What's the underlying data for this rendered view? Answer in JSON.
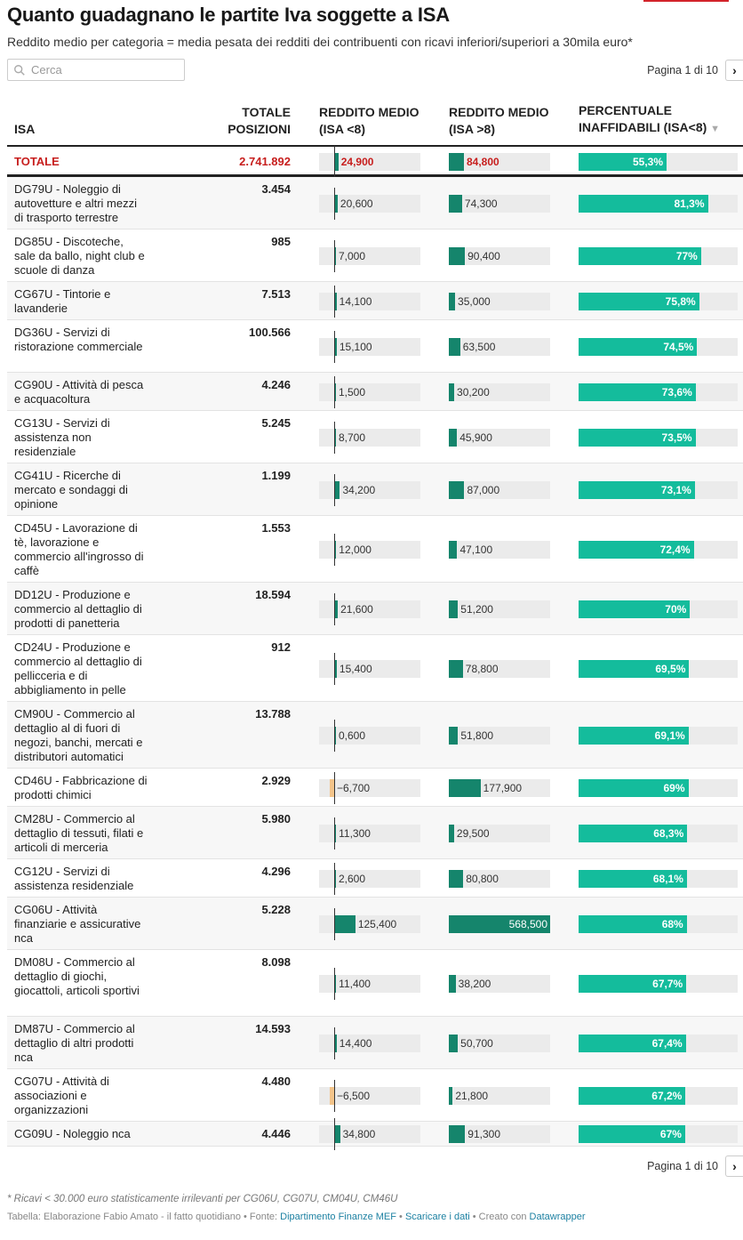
{
  "title": "Quanto guadagnano le partite Iva soggette a ISA",
  "subtitle": "Reddito medio per categoria = media pesata dei redditi dei contribuenti con ricavi inferiori/superiori a 30mila euro*",
  "search": {
    "placeholder": "Cerca"
  },
  "pagination": {
    "label": "Pagina 1 di 10",
    "next_symbol": "›"
  },
  "colors": {
    "accent": "#d2232a",
    "total_red": "#c71e1d",
    "bar_dark": "#15856c",
    "bar_negative": "#f3c48a",
    "bar_pct": "#14bc9c",
    "cell_bg": "#ebebeb"
  },
  "chart_data": {
    "type": "table",
    "columns": [
      "ISA",
      "TOTALE POSIZIONI",
      "REDDITO MEDIO (ISA <8)",
      "REDDITO MEDIO (ISA >8)",
      "PERCENTUALE INAFFIDABILI (ISA<8)"
    ],
    "column_headers": {
      "isa": "ISA",
      "pos_line1": "TOTALE",
      "pos_line2": "POSIZIONI",
      "r1_line1": "REDDITO MEDIO",
      "r1_line2": "(ISA <8)",
      "r2_line1": "REDDITO MEDIO",
      "r2_line2": "(ISA >8)",
      "pct_line1": "PERCENTUALE",
      "pct_line2": "INAFFIDABILI (ISA<8)",
      "sort_indicator": "▼"
    },
    "total": {
      "label": "TOTALE",
      "positions": "2.741.892",
      "r1": 24900,
      "r1_label": "24,900",
      "r2": 84800,
      "r2_label": "84,800",
      "pct": 55.3,
      "pct_label": "55,3%"
    },
    "rows": [
      {
        "label": "DG79U - Noleggio di autovetture e altri mezzi di trasporto terrestre",
        "positions": "3.454",
        "r1": 20600,
        "r1_label": "20,600",
        "r2": 74300,
        "r2_label": "74,300",
        "pct": 81.3,
        "pct_label": "81,3%"
      },
      {
        "label": "DG85U - Discoteche, sale da ballo, night club e scuole di danza",
        "positions": "985",
        "r1": 7000,
        "r1_label": "7,000",
        "r2": 90400,
        "r2_label": "90,400",
        "pct": 77,
        "pct_label": "77%"
      },
      {
        "label": "CG67U - Tintorie e lavanderie",
        "positions": "7.513",
        "r1": 14100,
        "r1_label": "14,100",
        "r2": 35000,
        "r2_label": "35,000",
        "pct": 75.8,
        "pct_label": "75,8%"
      },
      {
        "label": "DG36U - Servizi di ristorazione commerciale",
        "positions": "100.566",
        "r1": 15100,
        "r1_label": "15,100",
        "r2": 63500,
        "r2_label": "63,500",
        "pct": 74.5,
        "pct_label": "74,5%"
      },
      {
        "label": "CG90U - Attività di pesca e acquacoltura",
        "positions": "4.246",
        "r1": 1500,
        "r1_label": "1,500",
        "r2": 30200,
        "r2_label": "30,200",
        "pct": 73.6,
        "pct_label": "73,6%"
      },
      {
        "label": "CG13U - Servizi di assistenza non residenziale",
        "positions": "5.245",
        "r1": 8700,
        "r1_label": "8,700",
        "r2": 45900,
        "r2_label": "45,900",
        "pct": 73.5,
        "pct_label": "73,5%"
      },
      {
        "label": "CG41U - Ricerche di mercato e sondaggi di opinione",
        "positions": "1.199",
        "r1": 34200,
        "r1_label": "34,200",
        "r2": 87000,
        "r2_label": "87,000",
        "pct": 73.1,
        "pct_label": "73,1%"
      },
      {
        "label": "CD45U - Lavorazione di tè, lavorazione e commercio all'ingrosso di caffè",
        "positions": "1.553",
        "r1": 12000,
        "r1_label": "12,000",
        "r2": 47100,
        "r2_label": "47,100",
        "pct": 72.4,
        "pct_label": "72,4%"
      },
      {
        "label": "DD12U - Produzione e commercio al dettaglio di prodotti di panetteria",
        "positions": "18.594",
        "r1": 21600,
        "r1_label": "21,600",
        "r2": 51200,
        "r2_label": "51,200",
        "pct": 70,
        "pct_label": "70%"
      },
      {
        "label": "CD24U - Produzione e commercio al dettaglio di pellicceria e di abbigliamento in pelle",
        "positions": "912",
        "r1": 15400,
        "r1_label": "15,400",
        "r2": 78800,
        "r2_label": "78,800",
        "pct": 69.5,
        "pct_label": "69,5%"
      },
      {
        "label": "CM90U - Commercio al dettaglio al di fuori di negozi, banchi, mercati e distributori automatici",
        "positions": "13.788",
        "r1": 600,
        "r1_label": "0,600",
        "r2": 51800,
        "r2_label": "51,800",
        "pct": 69.1,
        "pct_label": "69,1%"
      },
      {
        "label": "CD46U - Fabbricazione di prodotti chimici",
        "positions": "2.929",
        "r1": -6700,
        "r1_label": "−6,700",
        "r2": 177900,
        "r2_label": "177,900",
        "pct": 69,
        "pct_label": "69%"
      },
      {
        "label": "CM28U - Commercio al dettaglio di tessuti, filati e articoli di merceria",
        "positions": "5.980",
        "r1": 11300,
        "r1_label": "11,300",
        "r2": 29500,
        "r2_label": "29,500",
        "pct": 68.3,
        "pct_label": "68,3%"
      },
      {
        "label": "CG12U - Servizi di assistenza residenziale",
        "positions": "4.296",
        "r1": 2600,
        "r1_label": "2,600",
        "r2": 80800,
        "r2_label": "80,800",
        "pct": 68.1,
        "pct_label": "68,1%"
      },
      {
        "label": "CG06U - Attività finanziarie e assicurative nca",
        "positions": "5.228",
        "r1": 125400,
        "r1_label": "125,400",
        "r2": 568500,
        "r2_label": "568,500",
        "pct": 68,
        "pct_label": "68%"
      },
      {
        "label": "DM08U - Commercio al dettaglio di giochi, giocattoli, articoli sportivi",
        "positions": "8.098",
        "r1": 11400,
        "r1_label": "11,400",
        "r2": 38200,
        "r2_label": "38,200",
        "pct": 67.7,
        "pct_label": "67,7%"
      },
      {
        "label": "DM87U - Commercio al dettaglio di altri prodotti nca",
        "positions": "14.593",
        "r1": 14400,
        "r1_label": "14,400",
        "r2": 50700,
        "r2_label": "50,700",
        "pct": 67.4,
        "pct_label": "67,4%"
      },
      {
        "label": "CG07U - Attività di associazioni e organizzazioni",
        "positions": "4.480",
        "r1": -6500,
        "r1_label": "−6,500",
        "r2": 21800,
        "r2_label": "21,800",
        "pct": 67.2,
        "pct_label": "67,2%"
      },
      {
        "label": "CG09U - Noleggio nca",
        "positions": "4.446",
        "r1": 34800,
        "r1_label": "34,800",
        "r2": 91300,
        "r2_label": "91,300",
        "pct": 67,
        "pct_label": "67%"
      }
    ]
  },
  "footnote": "* Ricavi < 30.000 euro statisticamente irrilevanti per CG06U, CG07U, CM04U, CM46U",
  "source": {
    "prefix": "Tabella: Elaborazione Fabio Amato - il fatto quotidiano • Fonte: ",
    "source_link": "Dipartimento Finanze MEF",
    "sep1": " • ",
    "download_link": "Scaricare i dati",
    "sep2": " • Creato con ",
    "tool_link": "Datawrapper"
  }
}
